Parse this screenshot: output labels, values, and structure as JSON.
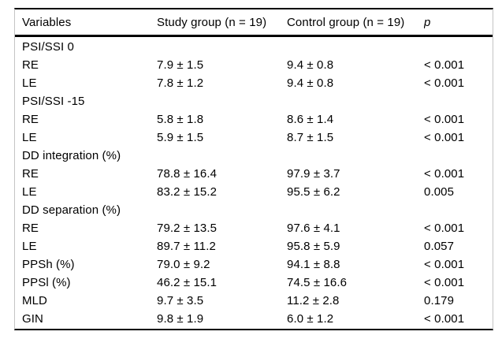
{
  "table": {
    "columns": [
      "Variables",
      "Study group (n = 19)",
      "Control group (n = 19)",
      "p"
    ],
    "rows": [
      {
        "variable": "PSI/SSI 0",
        "study": "",
        "control": "",
        "p": ""
      },
      {
        "variable": "RE",
        "study": "7.9 ± 1.5",
        "control": "9.4 ± 0.8",
        "p": "< 0.001"
      },
      {
        "variable": "LE",
        "study": "7.8 ± 1.2",
        "control": "9.4 ± 0.8",
        "p": "< 0.001"
      },
      {
        "variable": "PSI/SSI -15",
        "study": "",
        "control": "",
        "p": ""
      },
      {
        "variable": "RE",
        "study": "5.8 ± 1.8",
        "control": "8.6 ± 1.4",
        "p": "< 0.001"
      },
      {
        "variable": "LE",
        "study": "5.9 ± 1.5",
        "control": "8.7 ± 1.5",
        "p": "< 0.001"
      },
      {
        "variable": "DD integration (%)",
        "study": "",
        "control": "",
        "p": ""
      },
      {
        "variable": "RE",
        "study": "78.8 ± 16.4",
        "control": "97.9 ± 3.7",
        "p": "< 0.001"
      },
      {
        "variable": "LE",
        "study": "83.2 ± 15.2",
        "control": "95.5 ± 6.2",
        "p": "0.005"
      },
      {
        "variable": "DD separation (%)",
        "study": "",
        "control": "",
        "p": ""
      },
      {
        "variable": "RE",
        "study": "79.2 ± 13.5",
        "control": "97.6 ± 4.1",
        "p": "< 0.001"
      },
      {
        "variable": "LE",
        "study": "89.7 ± 11.2",
        "control": "95.8 ± 5.9",
        "p": "0.057"
      },
      {
        "variable": "PPSh (%)",
        "study": "79.0 ± 9.2",
        "control": "94.1 ± 8.8",
        "p": "< 0.001"
      },
      {
        "variable": "PPSl (%)",
        "study": "46.2 ± 15.1",
        "control": "74.5 ± 16.6",
        "p": "< 0.001"
      },
      {
        "variable": "MLD",
        "study": "9.7 ± 3.5",
        "control": "11.2 ± 2.8",
        "p": "0.179"
      },
      {
        "variable": "GIN",
        "study": "9.8 ± 1.9",
        "control": "6.0 ± 1.2",
        "p": "< 0.001"
      }
    ],
    "colors": {
      "rule": "#000000",
      "frame": "#c4c4c4",
      "text": "#000000",
      "background": "#ffffff"
    }
  }
}
